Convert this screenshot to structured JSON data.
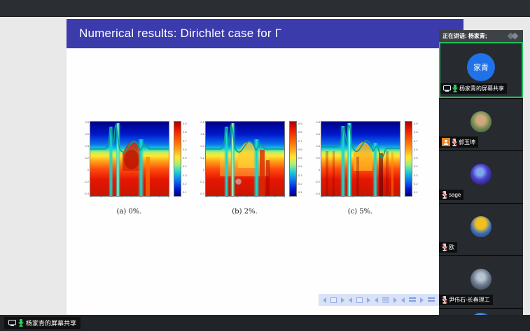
{
  "slide": {
    "title": "Numerical results: Dirichlet case for Γ",
    "figures": [
      {
        "caption": "(a) 0%."
      },
      {
        "caption": "(b) 2%."
      },
      {
        "caption": "(c) 5%."
      }
    ]
  },
  "chart_data": [
    {
      "type": "heatmap",
      "caption": "(a) 0%.",
      "colormap": "jet",
      "x_ticks": [
        "-8",
        "-6",
        "-4",
        "-2",
        "0",
        "2",
        "4",
        "6",
        "8"
      ],
      "y_ticks": [
        "0.8",
        "0.6",
        "0.4",
        "0.2",
        "0",
        "-0.2",
        "-0.4"
      ],
      "colorbar_ticks": [
        "0.9",
        "0.8",
        "0.7",
        "0.6",
        "0.5",
        "0.4",
        "0.3",
        "0.2",
        "0.1"
      ],
      "description": "Reconstructed medium with 0% noise: blue region on top, cyan interface curve, red region below with narrow cyan vertical plumes"
    },
    {
      "type": "heatmap",
      "caption": "(b) 2%.",
      "colormap": "jet",
      "x_ticks": [
        "-8",
        "-6",
        "-4",
        "-2",
        "0",
        "2",
        "4",
        "6",
        "8"
      ],
      "y_ticks": [
        "0.8",
        "0.6",
        "0.4",
        "0.2",
        "0",
        "-0.2",
        "-0.4"
      ],
      "colorbar_ticks": [
        "0.9",
        "0.8",
        "0.7",
        "0.6",
        "0.5",
        "0.4",
        "0.3",
        "0.2",
        "0.1"
      ],
      "description": "Reconstruction with 2% noise: broader yellow mid-band, cyan plumes, noisier lower region"
    },
    {
      "type": "heatmap",
      "caption": "(c) 5%.",
      "colormap": "jet",
      "x_ticks": [
        "-8",
        "-6",
        "-4",
        "-2",
        "0",
        "2",
        "4",
        "6",
        "8"
      ],
      "y_ticks": [
        "0.8",
        "0.6",
        "0.4",
        "0.2",
        "0",
        "-0.2",
        "-0.4"
      ],
      "colorbar_ticks": [
        "0.9",
        "0.8",
        "0.7",
        "0.6",
        "0.5",
        "0.4",
        "0.3",
        "0.2",
        "0.1"
      ],
      "description": "Reconstruction with 5% noise: vertical striping artifacts in the red region"
    }
  ],
  "sidebar": {
    "header": {
      "label": "正在讲话: 杨家青;",
      "collapse_icon": "double-diamond-collapse-icon"
    },
    "participants": [
      {
        "name": "杨家青的屏幕共享",
        "avatar_text": "家青",
        "mic": "on",
        "active": true,
        "screen_sharing": true
      },
      {
        "name": "郭玉坤",
        "mic": "muted",
        "host_badge": true
      },
      {
        "name": "sage",
        "mic": "muted"
      },
      {
        "name": "欧",
        "mic": "muted"
      },
      {
        "name": "尹伟石-长春理工",
        "mic": "muted"
      },
      {
        "name": "",
        "mic": "unknown",
        "partial": true
      }
    ]
  },
  "taskbar": {
    "status_label": "杨家青的屏幕共享"
  },
  "beamer_nav": {
    "icons": [
      "prev-arrow",
      "slide-box",
      "next-arrow",
      "prev-arrow",
      "overlay-box",
      "next-arrow",
      "prev-arrow",
      "frame-list",
      "next-arrow",
      "prev-arrow",
      "section-list",
      "next-arrow",
      "appendix-list"
    ]
  },
  "colors": {
    "banner_blue": "#3b3bab",
    "active_border_green": "#21c05a",
    "avatar_blue": "#1f72e8",
    "host_badge_orange": "#e8842a",
    "mic_on_green": "#2ecc5e",
    "mic_muted_slash_red": "#e03e3e",
    "viewer_gray": "#e9e9e9",
    "topbar_gray": "#2b2e33"
  }
}
